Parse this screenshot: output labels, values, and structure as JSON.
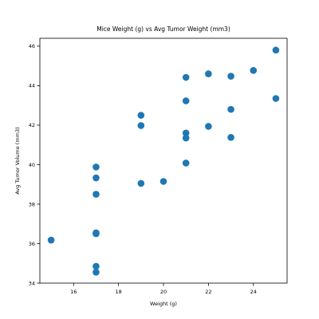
{
  "chart_data": {
    "type": "scatter",
    "title": "Mice Weight (g) vs Avg Tumor Weight (mm3)",
    "xlabel": "Weight (g)",
    "ylabel": "Avg Tumor Volume (mm3)",
    "xlim": [
      14.5,
      25.5
    ],
    "ylim": [
      34,
      46.4
    ],
    "xticks": [
      "16",
      "18",
      "20",
      "22",
      "24"
    ],
    "yticks": [
      "34",
      "36",
      "38",
      "40",
      "42",
      "44",
      "46"
    ],
    "grid": false,
    "marker_color": "#1f77b4",
    "points": [
      {
        "x": 15,
        "y": 36.18
      },
      {
        "x": 17,
        "y": 34.55
      },
      {
        "x": 17,
        "y": 34.85
      },
      {
        "x": 17,
        "y": 36.5
      },
      {
        "x": 17,
        "y": 36.55
      },
      {
        "x": 17,
        "y": 38.5
      },
      {
        "x": 17,
        "y": 39.33
      },
      {
        "x": 17,
        "y": 39.88
      },
      {
        "x": 19,
        "y": 39.05
      },
      {
        "x": 19,
        "y": 41.98
      },
      {
        "x": 19,
        "y": 42.5
      },
      {
        "x": 20,
        "y": 39.15
      },
      {
        "x": 21,
        "y": 40.08
      },
      {
        "x": 21,
        "y": 41.35
      },
      {
        "x": 21,
        "y": 41.6
      },
      {
        "x": 21,
        "y": 43.23
      },
      {
        "x": 21,
        "y": 44.42
      },
      {
        "x": 22,
        "y": 41.94
      },
      {
        "x": 22,
        "y": 44.6
      },
      {
        "x": 23,
        "y": 41.38
      },
      {
        "x": 23,
        "y": 42.8
      },
      {
        "x": 23,
        "y": 44.48
      },
      {
        "x": 24,
        "y": 44.77
      },
      {
        "x": 25,
        "y": 43.35
      },
      {
        "x": 25,
        "y": 45.8
      }
    ]
  }
}
